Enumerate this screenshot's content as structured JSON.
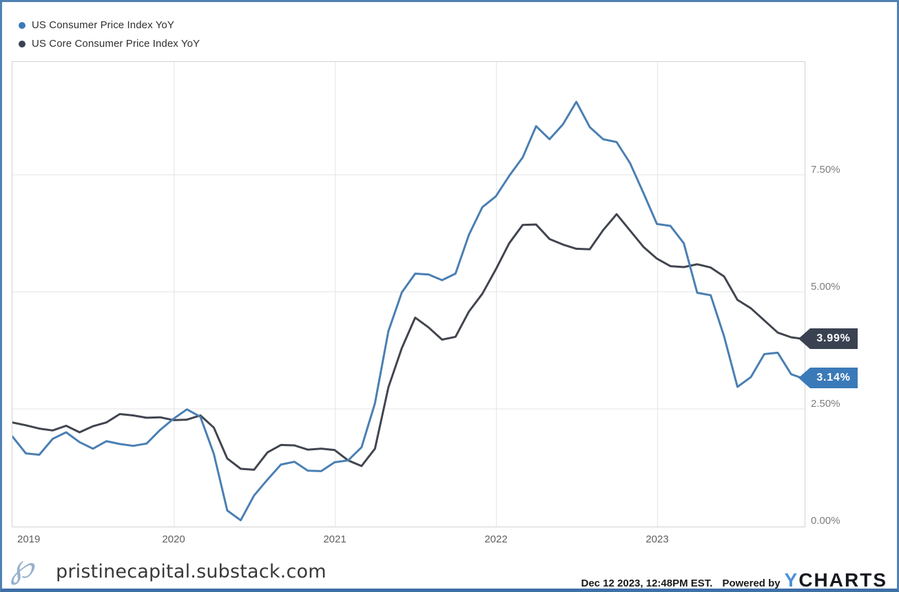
{
  "legend": {
    "items": [
      {
        "label": "US Consumer Price Index YoY",
        "color": "#3b7ab8"
      },
      {
        "label": "US Core Consumer Price Index YoY",
        "color": "#3a4252"
      }
    ]
  },
  "chart_data": {
    "type": "line",
    "title": "",
    "xlabel": "",
    "ylabel": "",
    "frequency": "monthly",
    "x_range": [
      "2018-12",
      "2023-11"
    ],
    "x_tick_labels": [
      "2019",
      "2020",
      "2021",
      "2022",
      "2023"
    ],
    "y_tick_labels": [
      "7.50%",
      "5.00%",
      "2.50%",
      "0.00%"
    ],
    "y_ticks": [
      7.5,
      5.0,
      2.5,
      0.0
    ],
    "ylim": [
      0,
      9.94
    ],
    "grid": true,
    "legend_position": "top-left",
    "y_axis_side": "right",
    "series": [
      {
        "name": "US Consumer Price Index YoY",
        "color": "#4a7fb2",
        "end_label": "3.14%",
        "end_label_bg": "#3b7ab8",
        "values": [
          1.91,
          1.55,
          1.52,
          1.86,
          2.0,
          1.79,
          1.65,
          1.81,
          1.75,
          1.71,
          1.76,
          2.05,
          2.29,
          2.49,
          2.33,
          1.54,
          0.33,
          0.12,
          0.65,
          0.99,
          1.31,
          1.37,
          1.18,
          1.17,
          1.36,
          1.4,
          1.68,
          2.62,
          4.16,
          4.99,
          5.39,
          5.37,
          5.25,
          5.39,
          6.22,
          6.81,
          7.04,
          7.48,
          7.87,
          8.54,
          8.26,
          8.58,
          9.06,
          8.52,
          8.26,
          8.2,
          7.75,
          7.11,
          6.45,
          6.41,
          6.04,
          4.98,
          4.93,
          4.05,
          2.97,
          3.18,
          3.67,
          3.7,
          3.24,
          3.14
        ]
      },
      {
        "name": "US Core Consumer Price Index YoY",
        "color": "#41454f",
        "end_label": "3.99%",
        "end_label_bg": "#3a4252",
        "values": [
          2.21,
          2.15,
          2.08,
          2.04,
          2.14,
          2.0,
          2.13,
          2.21,
          2.39,
          2.36,
          2.31,
          2.32,
          2.26,
          2.27,
          2.36,
          2.1,
          1.44,
          1.22,
          1.2,
          1.57,
          1.73,
          1.72,
          1.63,
          1.65,
          1.62,
          1.4,
          1.28,
          1.65,
          2.96,
          3.8,
          4.45,
          4.24,
          3.98,
          4.04,
          4.58,
          4.96,
          5.48,
          6.04,
          6.43,
          6.44,
          6.13,
          6.01,
          5.92,
          5.91,
          6.32,
          6.66,
          6.31,
          5.96,
          5.71,
          5.55,
          5.53,
          5.59,
          5.52,
          5.33,
          4.83,
          4.65,
          4.39,
          4.13,
          4.03,
          3.99
        ]
      }
    ]
  },
  "footer": {
    "logo_glyph": "℘",
    "domain": "pristinecapital.substack.com"
  },
  "attribution": {
    "timestamp": "Dec 12 2023, 12:48PM EST.",
    "powered_by": "Powered by",
    "brand_y": "Y",
    "brand_rest": "CHARTS"
  },
  "colors": {
    "page_border": "#4e80b2",
    "gridline": "#e3e3e3",
    "plot_border": "#d2d2d2"
  }
}
